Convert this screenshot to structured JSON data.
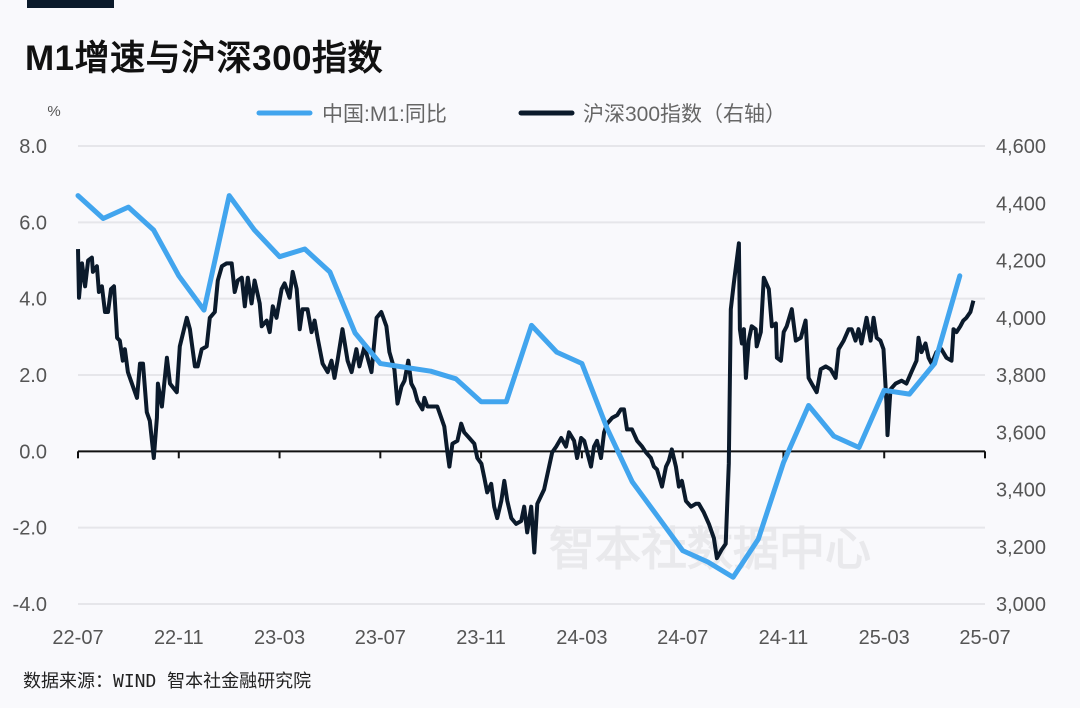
{
  "title": "M1增速与沪深300指数",
  "source": "数据来源：WIND 智本社金融研究院",
  "watermark": "智本社数据中心",
  "colors": {
    "m1": "#42a5ee",
    "hs300": "#0b1a2b",
    "background": "#f9f9fc"
  },
  "chart_data": {
    "type": "line",
    "title": "M1增速与沪深300指数",
    "left_axis": {
      "unit_label": "%",
      "ylim": [
        -4,
        8
      ],
      "ticks": [
        "8.0",
        "6.0",
        "4.0",
        "2.0",
        "0.0",
        "-2.0",
        "-4.0"
      ],
      "tick_values": [
        8,
        6,
        4,
        2,
        0,
        -2,
        -4
      ]
    },
    "right_axis": {
      "ylim": [
        3000,
        4600
      ],
      "ticks": [
        "4,600",
        "4,400",
        "4,200",
        "4,000",
        "3,800",
        "3,600",
        "3,400",
        "3,200",
        "3,000"
      ],
      "tick_values": [
        4600,
        4400,
        4200,
        4000,
        3800,
        3600,
        3400,
        3200,
        3000
      ]
    },
    "x_axis": {
      "start": "2022-07",
      "months_span": 36,
      "ticks": [
        "22-07",
        "22-11",
        "23-03",
        "23-07",
        "23-11",
        "24-03",
        "24-07",
        "24-11",
        "25-03",
        "25-07"
      ],
      "tick_month_offsets": [
        0,
        4,
        8,
        12,
        16,
        20,
        24,
        28,
        32,
        36
      ]
    },
    "grid": true,
    "legend": {
      "position": "top-center",
      "items": [
        "中国:M1:同比",
        "沪深300指数（右轴）"
      ]
    },
    "series": [
      {
        "name": "中国:M1:同比",
        "axis": "left",
        "x_unit": "month offset from 2022-07",
        "values": [
          6.7,
          6.1,
          6.4,
          5.8,
          4.6,
          3.7,
          6.7,
          5.8,
          5.1,
          5.3,
          4.7,
          3.1,
          2.3,
          2.2,
          2.1,
          1.9,
          1.3,
          1.3,
          3.3,
          2.6,
          2.3,
          0.6,
          -0.8,
          -1.7,
          -2.6,
          -2.9,
          -3.3,
          -2.3,
          -0.3,
          1.2,
          0.4,
          0.1,
          1.6,
          1.5,
          2.3,
          4.6
        ]
      },
      {
        "name": "沪深300指数（右轴）",
        "axis": "right",
        "x_unit": "month offset from 2022-07",
        "points": [
          [
            0,
            4240
          ],
          [
            0.04,
            4070
          ],
          [
            0.16,
            4190
          ],
          [
            0.28,
            4110
          ],
          [
            0.4,
            4200
          ],
          [
            0.55,
            4210
          ],
          [
            0.59,
            4160
          ],
          [
            0.75,
            4180
          ],
          [
            0.83,
            4090
          ],
          [
            0.95,
            4110
          ],
          [
            1.07,
            4020
          ],
          [
            1.19,
            4020
          ],
          [
            1.31,
            4100
          ],
          [
            1.43,
            4110
          ],
          [
            1.55,
            3930
          ],
          [
            1.66,
            3920
          ],
          [
            1.78,
            3850
          ],
          [
            1.86,
            3890
          ],
          [
            1.98,
            3810
          ],
          [
            2.18,
            3760
          ],
          [
            2.34,
            3720
          ],
          [
            2.46,
            3840
          ],
          [
            2.58,
            3840
          ],
          [
            2.73,
            3670
          ],
          [
            2.85,
            3640
          ],
          [
            3.01,
            3510
          ],
          [
            3.13,
            3650
          ],
          [
            3.17,
            3770
          ],
          [
            3.33,
            3690
          ],
          [
            3.53,
            3860
          ],
          [
            3.65,
            3770
          ],
          [
            3.92,
            3740
          ],
          [
            4.04,
            3900
          ],
          [
            4.32,
            4000
          ],
          [
            4.44,
            3960
          ],
          [
            4.64,
            3830
          ],
          [
            4.75,
            3830
          ],
          [
            4.91,
            3890
          ],
          [
            5.11,
            3900
          ],
          [
            5.23,
            4000
          ],
          [
            5.43,
            4020
          ],
          [
            5.55,
            4130
          ],
          [
            5.71,
            4180
          ],
          [
            5.9,
            4190
          ],
          [
            6.1,
            4190
          ],
          [
            6.22,
            4090
          ],
          [
            6.34,
            4130
          ],
          [
            6.5,
            4140
          ],
          [
            6.62,
            4040
          ],
          [
            6.74,
            4140
          ],
          [
            6.89,
            4050
          ],
          [
            7.01,
            4130
          ],
          [
            7.21,
            4050
          ],
          [
            7.29,
            3970
          ],
          [
            7.49,
            3990
          ],
          [
            7.61,
            3950
          ],
          [
            7.73,
            4040
          ],
          [
            7.88,
            4000
          ],
          [
            8.08,
            4100
          ],
          [
            8.2,
            4120
          ],
          [
            8.4,
            4070
          ],
          [
            8.52,
            4160
          ],
          [
            8.68,
            4100
          ],
          [
            8.8,
            3960
          ],
          [
            8.91,
            4030
          ],
          [
            9.11,
            4030
          ],
          [
            9.27,
            3950
          ],
          [
            9.39,
            3990
          ],
          [
            9.51,
            3930
          ],
          [
            9.71,
            3840
          ],
          [
            9.91,
            3810
          ],
          [
            10.06,
            3850
          ],
          [
            10.18,
            3790
          ],
          [
            10.3,
            3850
          ],
          [
            10.5,
            3960
          ],
          [
            10.7,
            3850
          ],
          [
            10.86,
            3810
          ],
          [
            11.05,
            3890
          ],
          [
            11.17,
            3830
          ],
          [
            11.37,
            3900
          ],
          [
            11.65,
            3810
          ],
          [
            11.85,
            4000
          ],
          [
            12.04,
            4020
          ],
          [
            12.24,
            3970
          ],
          [
            12.36,
            3880
          ],
          [
            12.56,
            3820
          ],
          [
            12.68,
            3700
          ],
          [
            12.84,
            3760
          ],
          [
            12.96,
            3780
          ],
          [
            13.11,
            3850
          ],
          [
            13.23,
            3770
          ],
          [
            13.35,
            3750
          ],
          [
            13.47,
            3710
          ],
          [
            13.67,
            3680
          ],
          [
            13.75,
            3720
          ],
          [
            13.87,
            3690
          ],
          [
            14.07,
            3690
          ],
          [
            14.26,
            3690
          ],
          [
            14.42,
            3650
          ],
          [
            14.54,
            3620
          ],
          [
            14.66,
            3530
          ],
          [
            14.74,
            3480
          ],
          [
            14.86,
            3560
          ],
          [
            15.06,
            3570
          ],
          [
            15.21,
            3630
          ],
          [
            15.33,
            3600
          ],
          [
            15.53,
            3580
          ],
          [
            15.73,
            3560
          ],
          [
            15.85,
            3510
          ],
          [
            16.01,
            3490
          ],
          [
            16.13,
            3440
          ],
          [
            16.24,
            3390
          ],
          [
            16.4,
            3420
          ],
          [
            16.52,
            3340
          ],
          [
            16.64,
            3300
          ],
          [
            16.8,
            3360
          ],
          [
            16.92,
            3430
          ],
          [
            17.04,
            3360
          ],
          [
            17.2,
            3300
          ],
          [
            17.39,
            3280
          ],
          [
            17.59,
            3290
          ],
          [
            17.71,
            3340
          ],
          [
            17.83,
            3250
          ],
          [
            17.99,
            3340
          ],
          [
            18.11,
            3180
          ],
          [
            18.23,
            3350
          ],
          [
            18.5,
            3400
          ],
          [
            18.7,
            3480
          ],
          [
            18.82,
            3530
          ],
          [
            18.98,
            3550
          ],
          [
            19.18,
            3580
          ],
          [
            19.37,
            3550
          ],
          [
            19.49,
            3600
          ],
          [
            19.69,
            3570
          ],
          [
            19.81,
            3510
          ],
          [
            19.97,
            3580
          ],
          [
            20.09,
            3570
          ],
          [
            20.21,
            3530
          ],
          [
            20.36,
            3480
          ],
          [
            20.48,
            3550
          ],
          [
            20.6,
            3570
          ],
          [
            20.76,
            3510
          ],
          [
            20.88,
            3600
          ],
          [
            21.0,
            3630
          ],
          [
            21.2,
            3650
          ],
          [
            21.4,
            3660
          ],
          [
            21.55,
            3680
          ],
          [
            21.67,
            3680
          ],
          [
            21.79,
            3610
          ],
          [
            21.99,
            3610
          ],
          [
            22.19,
            3570
          ],
          [
            22.39,
            3550
          ],
          [
            22.54,
            3530
          ],
          [
            22.74,
            3510
          ],
          [
            22.86,
            3480
          ],
          [
            22.98,
            3470
          ],
          [
            23.18,
            3410
          ],
          [
            23.34,
            3480
          ],
          [
            23.45,
            3500
          ],
          [
            23.57,
            3540
          ],
          [
            23.73,
            3480
          ],
          [
            23.85,
            3410
          ],
          [
            23.97,
            3430
          ],
          [
            24.13,
            3360
          ],
          [
            24.33,
            3340
          ],
          [
            24.52,
            3350
          ],
          [
            24.64,
            3350
          ],
          [
            24.84,
            3320
          ],
          [
            25.04,
            3280
          ],
          [
            25.24,
            3230
          ],
          [
            25.36,
            3160
          ],
          [
            25.55,
            3190
          ],
          [
            25.71,
            3210
          ],
          [
            25.83,
            3490
          ],
          [
            25.91,
            4030
          ],
          [
            26.03,
            4120
          ],
          [
            26.23,
            4260
          ],
          [
            26.27,
            3960
          ],
          [
            26.35,
            3910
          ],
          [
            26.43,
            3960
          ],
          [
            26.51,
            3790
          ],
          [
            26.62,
            3920
          ],
          [
            26.74,
            3970
          ],
          [
            26.9,
            3960
          ],
          [
            26.94,
            3900
          ],
          [
            27.1,
            3950
          ],
          [
            27.22,
            4140
          ],
          [
            27.42,
            4100
          ],
          [
            27.54,
            3970
          ],
          [
            27.7,
            3980
          ],
          [
            27.74,
            3860
          ],
          [
            27.9,
            3850
          ],
          [
            28.01,
            3950
          ],
          [
            28.13,
            3970
          ],
          [
            28.33,
            4030
          ],
          [
            28.49,
            3920
          ],
          [
            28.69,
            3930
          ],
          [
            28.88,
            3990
          ],
          [
            29.0,
            3790
          ],
          [
            29.12,
            3770
          ],
          [
            29.32,
            3740
          ],
          [
            29.48,
            3820
          ],
          [
            29.68,
            3830
          ],
          [
            29.87,
            3820
          ],
          [
            30.07,
            3790
          ],
          [
            30.19,
            3890
          ],
          [
            30.39,
            3920
          ],
          [
            30.59,
            3960
          ],
          [
            30.71,
            3960
          ],
          [
            30.86,
            3920
          ],
          [
            30.98,
            3960
          ],
          [
            31.1,
            3910
          ],
          [
            31.3,
            4000
          ],
          [
            31.46,
            3920
          ],
          [
            31.58,
            4000
          ],
          [
            31.7,
            3930
          ],
          [
            31.85,
            3920
          ],
          [
            31.97,
            3890
          ],
          [
            32.09,
            3700
          ],
          [
            32.13,
            3590
          ],
          [
            32.25,
            3750
          ],
          [
            32.45,
            3770
          ],
          [
            32.69,
            3780
          ],
          [
            32.88,
            3770
          ],
          [
            33.08,
            3810
          ],
          [
            33.28,
            3850
          ],
          [
            33.36,
            3930
          ],
          [
            33.48,
            3880
          ],
          [
            33.64,
            3910
          ],
          [
            33.76,
            3860
          ],
          [
            33.88,
            3840
          ],
          [
            34.07,
            3880
          ],
          [
            34.27,
            3890
          ],
          [
            34.47,
            3860
          ],
          [
            34.67,
            3850
          ],
          [
            34.75,
            3960
          ],
          [
            34.87,
            3950
          ],
          [
            35.02,
            3970
          ],
          [
            35.14,
            3990
          ],
          [
            35.26,
            4000
          ],
          [
            35.42,
            4020
          ],
          [
            35.54,
            4060
          ]
        ]
      }
    ]
  }
}
